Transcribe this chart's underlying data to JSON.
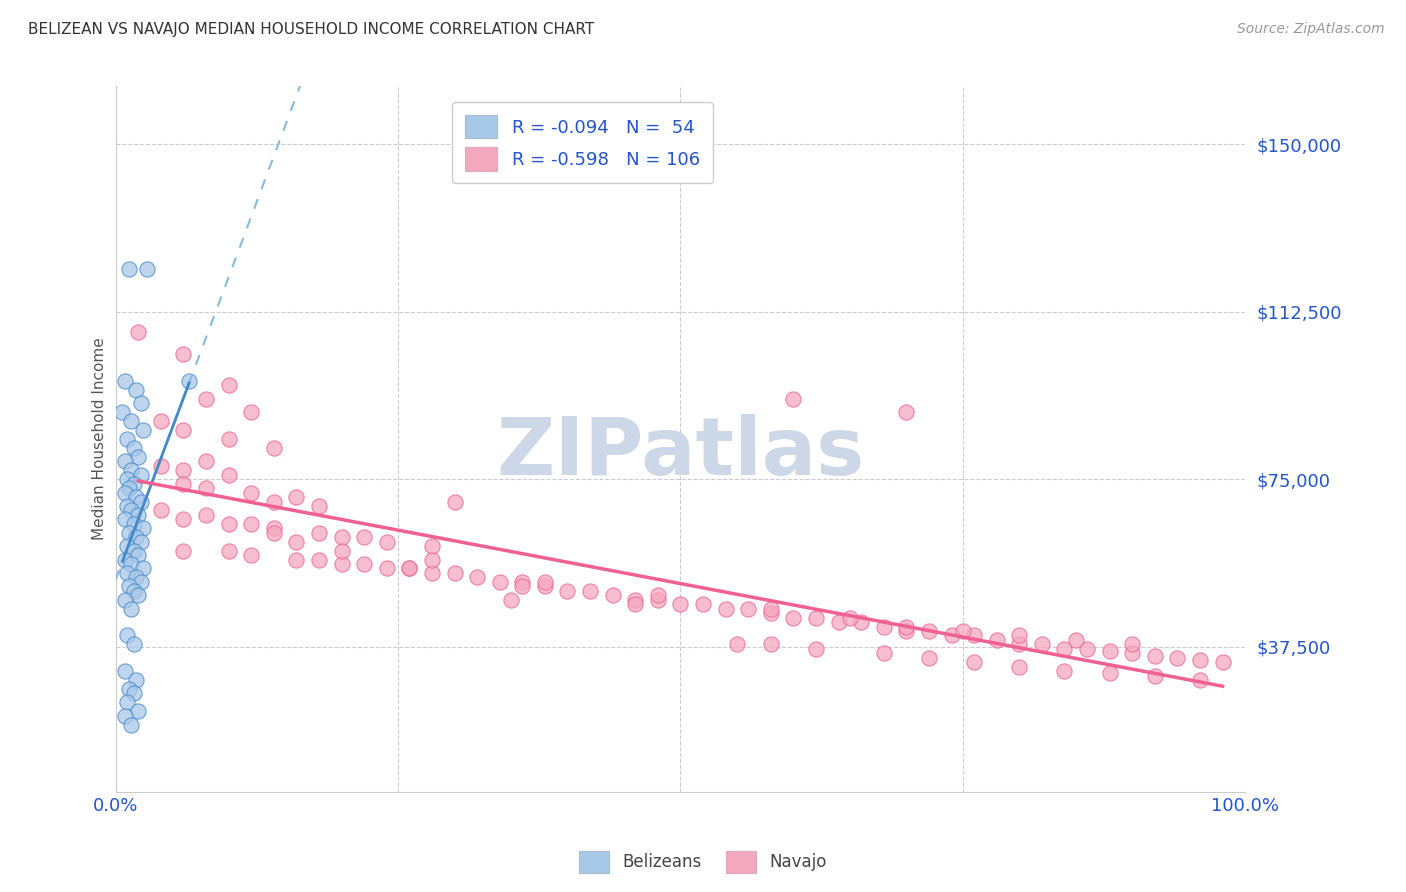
{
  "title": "BELIZEAN VS NAVAJO MEDIAN HOUSEHOLD INCOME CORRELATION CHART",
  "source": "Source: ZipAtlas.com",
  "ylabel": "Median Household Income",
  "ytick_labels": [
    "$37,500",
    "$75,000",
    "$112,500",
    "$150,000"
  ],
  "ytick_values": [
    37500,
    75000,
    112500,
    150000
  ],
  "ymin": 5000,
  "ymax": 163000,
  "xmin": 0.0,
  "xmax": 1.0,
  "belizean_color": "#a8c8e8",
  "navajo_color": "#f4a8be",
  "belizean_line_color": "#4488cc",
  "navajo_line_color": "#f06090",
  "belizean_dash_color": "#88bbdd",
  "legend_text_color": "#2255cc",
  "watermark": "ZIPatlas",
  "legend_label1": "R = -0.094   N =  54",
  "legend_label2": "R = -0.598   N = 106",
  "grid_color": "#cccccc",
  "background_color": "#ffffff",
  "watermark_color": "#ccd8e8",
  "belizean_x": [
    0.012,
    0.028,
    0.008,
    0.018,
    0.022,
    0.006,
    0.014,
    0.024,
    0.01,
    0.016,
    0.02,
    0.008,
    0.014,
    0.022,
    0.01,
    0.016,
    0.012,
    0.008,
    0.018,
    0.022,
    0.01,
    0.014,
    0.02,
    0.008,
    0.016,
    0.024,
    0.012,
    0.018,
    0.022,
    0.01,
    0.016,
    0.02,
    0.008,
    0.014,
    0.024,
    0.01,
    0.018,
    0.022,
    0.012,
    0.016,
    0.02,
    0.008,
    0.014,
    0.065,
    0.01,
    0.016,
    0.008,
    0.018,
    0.012,
    0.016,
    0.01,
    0.02,
    0.008,
    0.014
  ],
  "belizean_y": [
    122000,
    122000,
    97000,
    95000,
    92000,
    90000,
    88000,
    86000,
    84000,
    82000,
    80000,
    79000,
    77000,
    76000,
    75000,
    74000,
    73000,
    72000,
    71000,
    70000,
    69000,
    68000,
    67000,
    66000,
    65000,
    64000,
    63000,
    62000,
    61000,
    60000,
    59000,
    58000,
    57000,
    56000,
    55000,
    54000,
    53000,
    52000,
    51000,
    50000,
    49000,
    48000,
    46000,
    97000,
    40000,
    38000,
    32000,
    30000,
    28000,
    27000,
    25000,
    23000,
    22000,
    20000
  ],
  "navajo_x": [
    0.02,
    0.06,
    0.1,
    0.08,
    0.12,
    0.04,
    0.06,
    0.1,
    0.14,
    0.08,
    0.04,
    0.06,
    0.1,
    0.06,
    0.08,
    0.12,
    0.16,
    0.14,
    0.18,
    0.3,
    0.04,
    0.08,
    0.06,
    0.12,
    0.1,
    0.14,
    0.18,
    0.2,
    0.22,
    0.16,
    0.24,
    0.28,
    0.06,
    0.1,
    0.12,
    0.16,
    0.18,
    0.22,
    0.2,
    0.24,
    0.26,
    0.28,
    0.3,
    0.32,
    0.34,
    0.36,
    0.38,
    0.4,
    0.42,
    0.44,
    0.46,
    0.48,
    0.5,
    0.52,
    0.54,
    0.56,
    0.58,
    0.6,
    0.62,
    0.64,
    0.66,
    0.68,
    0.7,
    0.72,
    0.74,
    0.76,
    0.78,
    0.8,
    0.82,
    0.84,
    0.86,
    0.88,
    0.9,
    0.92,
    0.94,
    0.96,
    0.98,
    0.6,
    0.7,
    0.35,
    0.55,
    0.62,
    0.68,
    0.72,
    0.76,
    0.8,
    0.84,
    0.88,
    0.92,
    0.96,
    0.58,
    0.65,
    0.7,
    0.75,
    0.8,
    0.85,
    0.9,
    0.14,
    0.2,
    0.26,
    0.36,
    0.46,
    0.58,
    0.48,
    0.38,
    0.28
  ],
  "navajo_y": [
    108000,
    103000,
    96000,
    93000,
    90000,
    88000,
    86000,
    84000,
    82000,
    79000,
    78000,
    77000,
    76000,
    74000,
    73000,
    72000,
    71000,
    70000,
    69000,
    70000,
    68000,
    67000,
    66000,
    65000,
    65000,
    64000,
    63000,
    62000,
    62000,
    61000,
    61000,
    60000,
    59000,
    59000,
    58000,
    57000,
    57000,
    56000,
    56000,
    55000,
    55000,
    54000,
    54000,
    53000,
    52000,
    52000,
    51000,
    50000,
    50000,
    49000,
    48000,
    48000,
    47000,
    47000,
    46000,
    46000,
    45000,
    44000,
    44000,
    43000,
    43000,
    42000,
    41000,
    41000,
    40000,
    40000,
    39000,
    38000,
    38000,
    37000,
    37000,
    36500,
    36000,
    35500,
    35000,
    34500,
    34000,
    93000,
    90000,
    48000,
    38000,
    37000,
    36000,
    35000,
    34000,
    33000,
    32000,
    31500,
    31000,
    30000,
    46000,
    44000,
    42000,
    41000,
    40000,
    39000,
    38000,
    63000,
    59000,
    55000,
    51000,
    47000,
    38000,
    49000,
    52000,
    57000
  ]
}
